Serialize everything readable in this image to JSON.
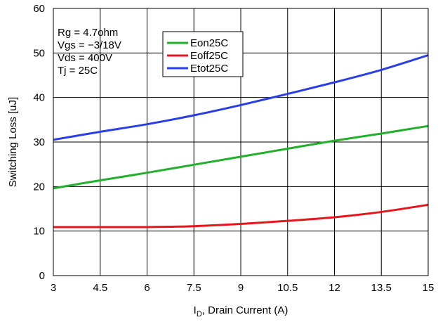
{
  "chart_data": {
    "type": "line",
    "title": "",
    "xlabel": {
      "main": "I",
      "sub": "D",
      "rest": ", Drain Current (A)"
    },
    "ylabel": "Switching Loss [uJ]",
    "xlim": [
      3,
      15
    ],
    "ylim": [
      0,
      60
    ],
    "xticks": [
      3,
      4.5,
      6,
      7.5,
      9,
      10.5,
      12,
      13.5,
      15
    ],
    "xtick_labels": [
      "3",
      "4.5",
      "6",
      "7.5",
      "9",
      "10.5",
      "12",
      "13.5",
      "15"
    ],
    "yticks": [
      0,
      10,
      20,
      30,
      40,
      50,
      60
    ],
    "ytick_labels": [
      "0",
      "10",
      "20",
      "30",
      "40",
      "50",
      "60"
    ],
    "grid": true,
    "legend_position": "top-center",
    "annotations": [
      "Rg = 4.7ohm",
      "Vgs = −3/18V",
      "Vds = 400V",
      "Tj = 25C"
    ],
    "series": [
      {
        "name": "Eon25C",
        "color": "#22b02a",
        "x": [
          3,
          4.5,
          6,
          7.5,
          9,
          10.5,
          12,
          13.5,
          15
        ],
        "y": [
          19.6,
          21.4,
          23.1,
          24.9,
          26.7,
          28.5,
          30.3,
          31.9,
          33.6
        ]
      },
      {
        "name": "Eoff25C",
        "color": "#e8161b",
        "x": [
          3,
          4.5,
          6,
          7.5,
          9,
          10.5,
          12,
          13.5,
          15
        ],
        "y": [
          10.9,
          10.9,
          10.9,
          11.1,
          11.6,
          12.3,
          13.1,
          14.3,
          15.9
        ]
      },
      {
        "name": "Etot25C",
        "color": "#2a3ee8",
        "x": [
          3,
          4.5,
          6,
          7.5,
          9,
          10.5,
          12,
          13.5,
          15
        ],
        "y": [
          30.5,
          32.3,
          34.0,
          36.0,
          38.3,
          40.8,
          43.4,
          46.2,
          49.5
        ]
      }
    ]
  }
}
